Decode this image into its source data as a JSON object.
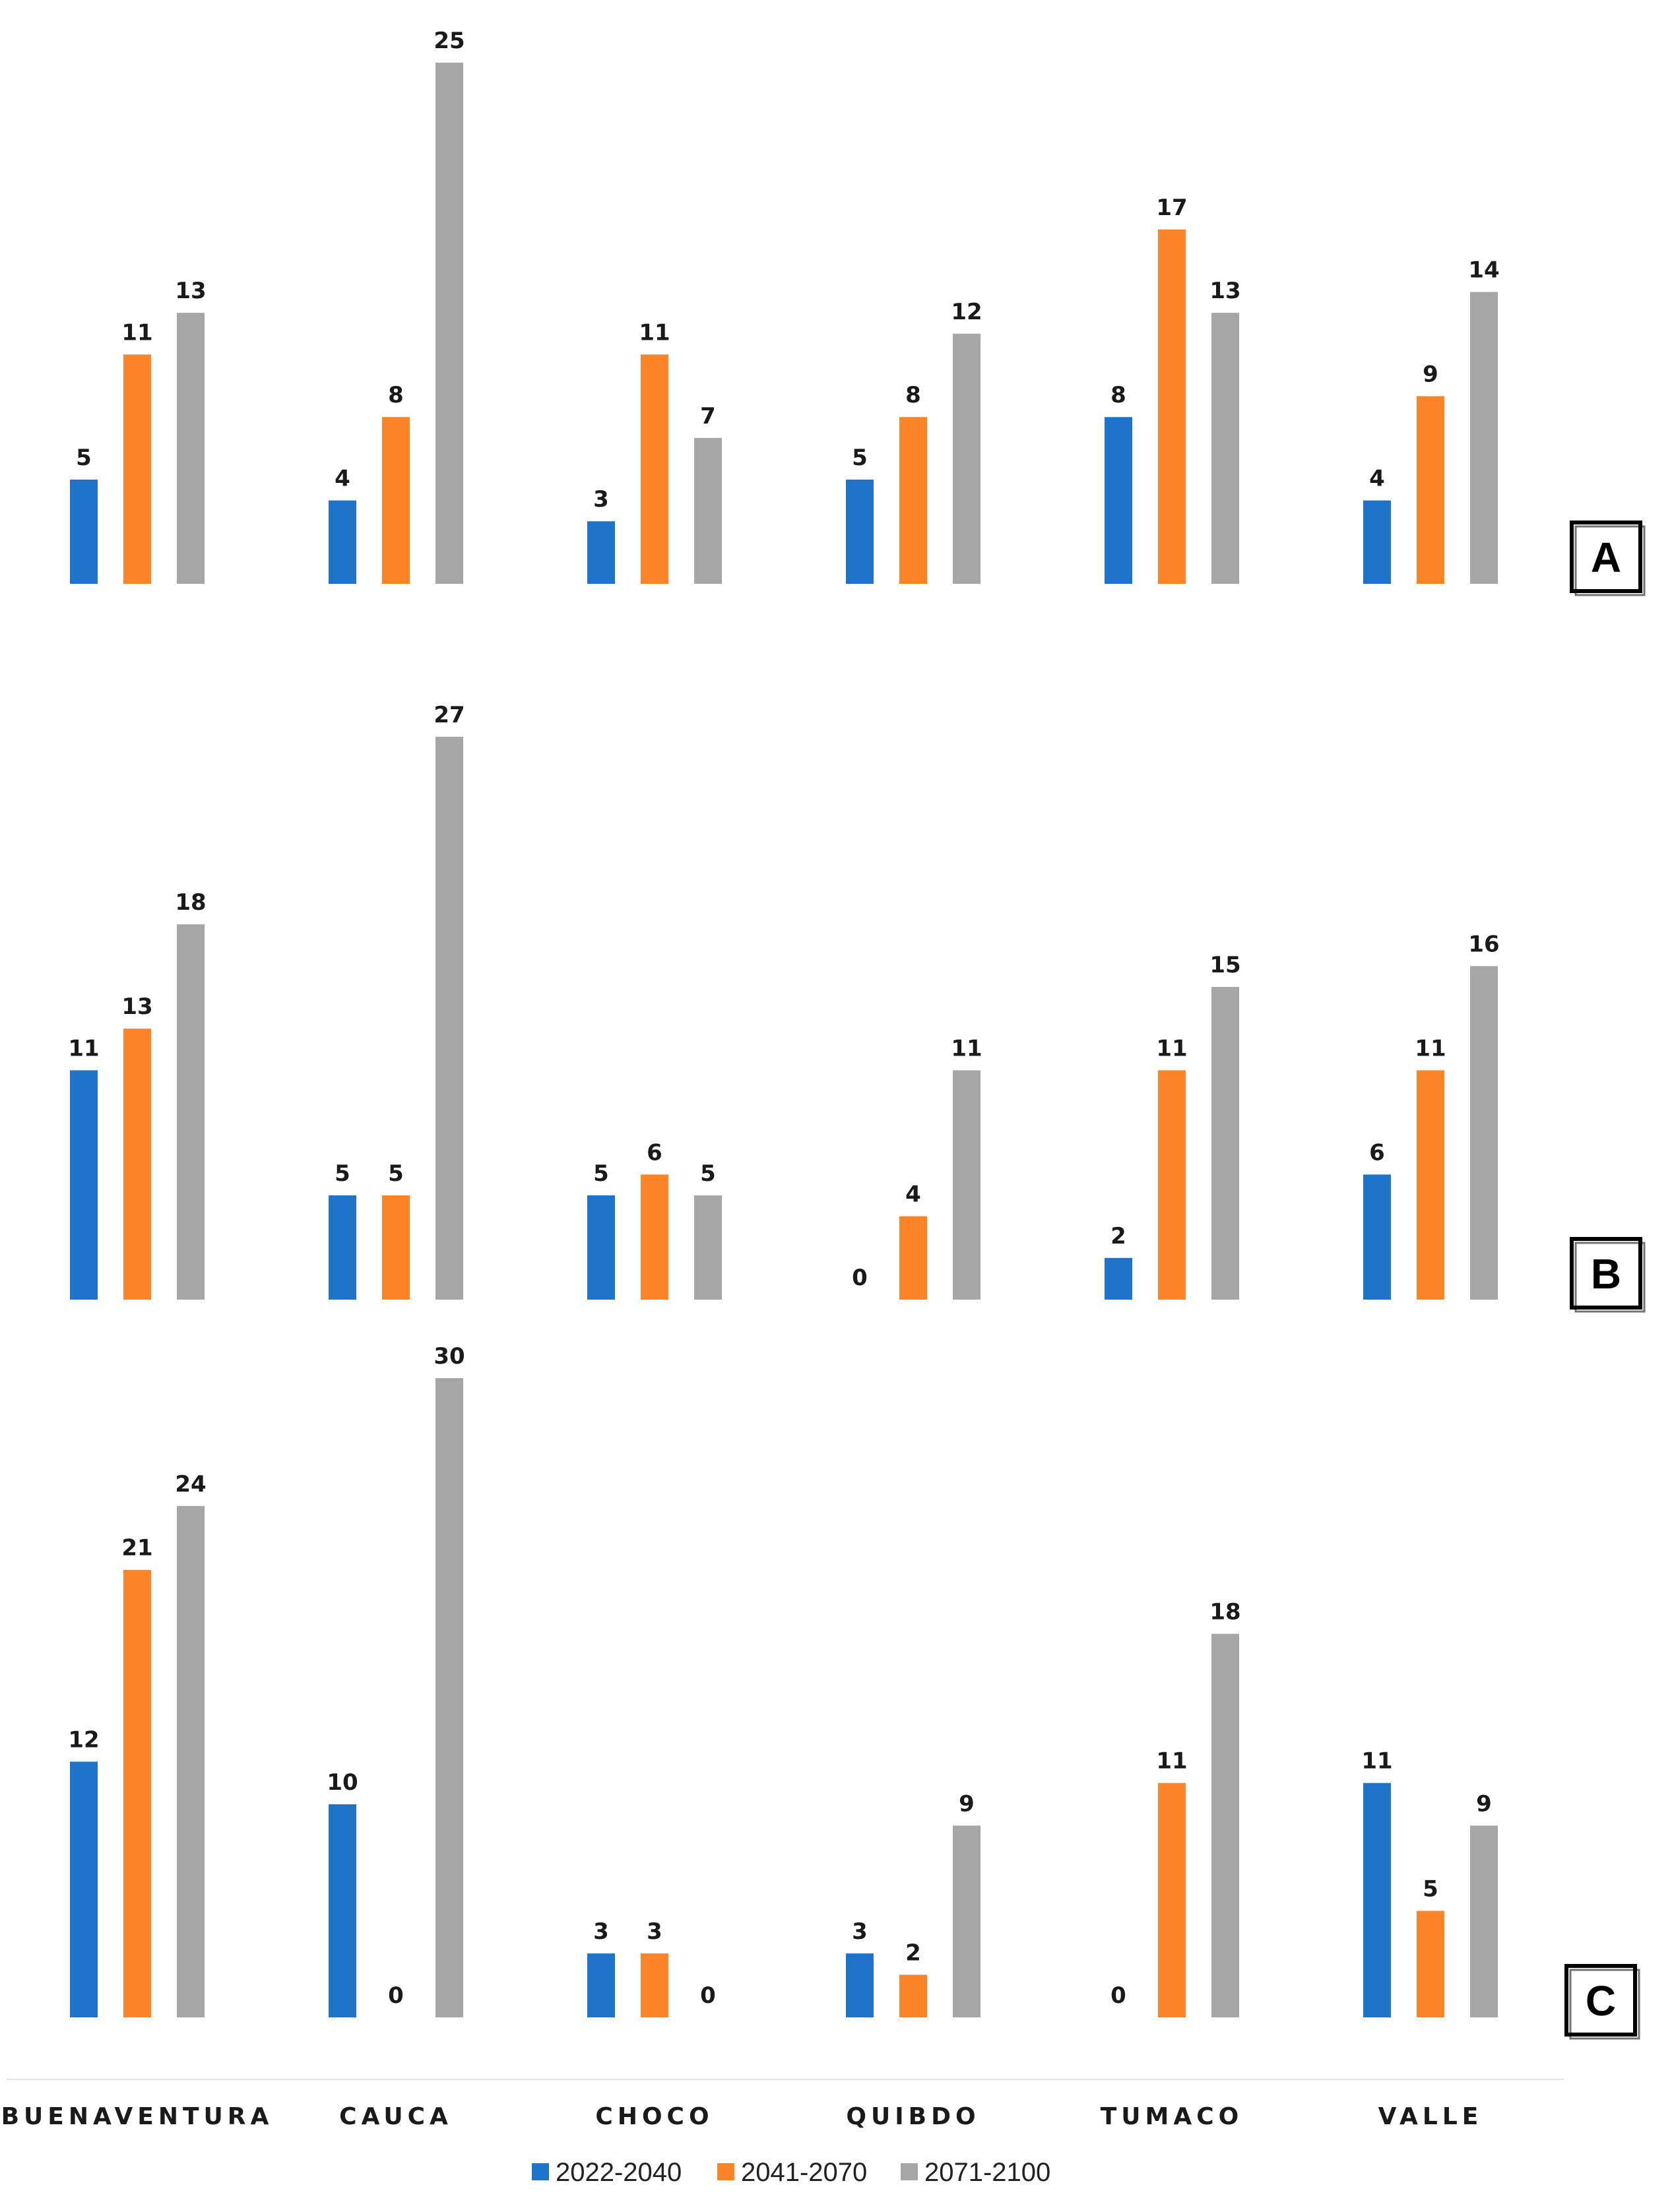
{
  "chart_data": {
    "type": "bar",
    "categories": [
      "BUENAVENTURA",
      "CAUCA",
      "CHOCO",
      "QUIBDO",
      "TUMACO",
      "VALLE"
    ],
    "series_names": [
      "2022-2040",
      "2041-2070",
      "2071-2100"
    ],
    "colors": [
      "#1f73c8",
      "#fb8428",
      "#a6a6a6"
    ],
    "legend_position": "bottom",
    "grid": false,
    "panels": [
      {
        "label": "A",
        "series": [
          {
            "name": "2022-2040",
            "values": [
              5,
              4,
              3,
              5,
              8,
              4
            ]
          },
          {
            "name": "2041-2070",
            "values": [
              11,
              8,
              11,
              8,
              17,
              9
            ]
          },
          {
            "name": "2071-2100",
            "values": [
              13,
              25,
              7,
              12,
              13,
              14
            ]
          }
        ]
      },
      {
        "label": "B",
        "series": [
          {
            "name": "2022-2040",
            "values": [
              11,
              5,
              5,
              0,
              2,
              6
            ]
          },
          {
            "name": "2041-2070",
            "values": [
              13,
              5,
              6,
              4,
              11,
              11
            ]
          },
          {
            "name": "2071-2100",
            "values": [
              18,
              27,
              5,
              11,
              15,
              16
            ]
          }
        ]
      },
      {
        "label": "C",
        "series": [
          {
            "name": "2022-2040",
            "values": [
              12,
              10,
              3,
              3,
              0,
              11
            ]
          },
          {
            "name": "2041-2070",
            "values": [
              21,
              0,
              3,
              2,
              11,
              5
            ]
          },
          {
            "name": "2071-2100",
            "values": [
              24,
              30,
              0,
              9,
              18,
              9
            ]
          }
        ]
      }
    ]
  }
}
